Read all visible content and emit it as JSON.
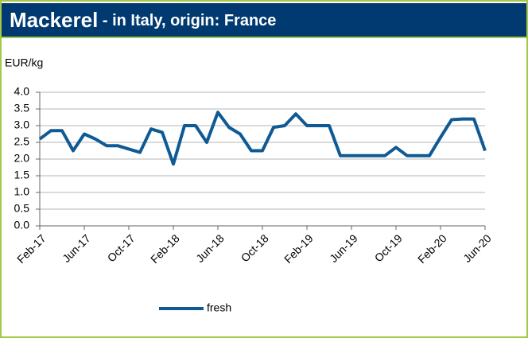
{
  "chart_data": {
    "type": "line",
    "title": "Mackerel",
    "subtitle": " - in Italy, origin: France",
    "y_label": "EUR/kg",
    "categories": [
      "Feb-17",
      null,
      null,
      null,
      "Jun-17",
      null,
      null,
      null,
      "Oct-17",
      null,
      null,
      null,
      "Feb-18",
      null,
      null,
      null,
      "Jun-18",
      null,
      null,
      null,
      "Oct-18",
      null,
      null,
      null,
      "Feb-19",
      null,
      null,
      null,
      "Jun-19",
      null,
      null,
      null,
      "Oct-19",
      null,
      null,
      null,
      "Feb-20",
      null,
      null,
      null,
      "Jun-20"
    ],
    "series": [
      {
        "name": "fresh",
        "color": "#0f5a94",
        "values": [
          2.6,
          2.85,
          2.85,
          2.25,
          2.75,
          2.6,
          2.4,
          2.4,
          2.3,
          2.2,
          2.9,
          2.8,
          1.85,
          3.0,
          3.0,
          2.5,
          3.4,
          2.95,
          2.75,
          2.25,
          2.25,
          2.95,
          3.0,
          3.35,
          3.0,
          3.0,
          3.0,
          2.1,
          2.1,
          2.1,
          2.1,
          2.1,
          2.35,
          2.1,
          2.1,
          2.1,
          2.65,
          3.18,
          3.2,
          3.2,
          2.25
        ]
      }
    ],
    "ylim": [
      0,
      4
    ],
    "yticks": [
      {
        "value": 0,
        "label": "0.0"
      },
      {
        "value": 0.5,
        "label": "0.5"
      },
      {
        "value": 1,
        "label": "1.0"
      },
      {
        "value": 1.5,
        "label": "1.5"
      },
      {
        "value": 2,
        "label": "2.0"
      },
      {
        "value": 2.5,
        "label": "2.5"
      },
      {
        "value": 3,
        "label": "3.0"
      },
      {
        "value": 3.5,
        "label": "3.5"
      },
      {
        "value": 4,
        "label": "4.0"
      }
    ],
    "grid": true,
    "legend": "bottom"
  }
}
